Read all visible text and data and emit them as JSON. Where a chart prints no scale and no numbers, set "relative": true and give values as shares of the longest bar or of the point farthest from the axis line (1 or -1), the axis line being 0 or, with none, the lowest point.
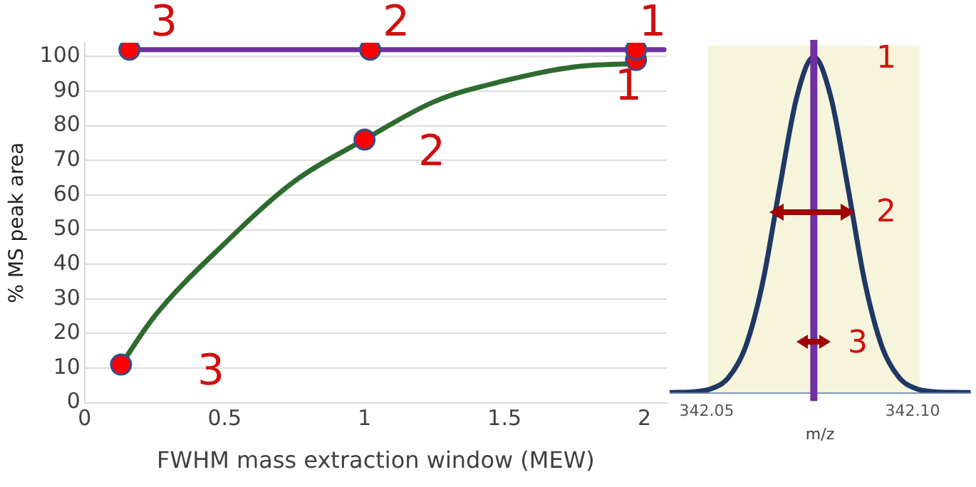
{
  "chart_data": [
    {
      "type": "line",
      "xlabel": "FWHM mass extraction window (MEW)",
      "ylabel": "% MS peak area",
      "xlim": [
        0,
        2.08
      ],
      "xticks": [
        0,
        0.5,
        1,
        1.5,
        2
      ],
      "ylim": [
        0,
        104
      ],
      "yticks": [
        0,
        10,
        20,
        30,
        40,
        50,
        60,
        70,
        80,
        90,
        100
      ],
      "grid": "y",
      "series": [
        {
          "type": "line",
          "color": "#2e6b2e",
          "marker": "none",
          "x": [
            0.13,
            0.25,
            0.5,
            0.75,
            1,
            1.25,
            1.5,
            1.75,
            1.97
          ],
          "values": [
            11,
            25,
            46,
            64,
            76,
            87,
            93,
            97,
            98
          ]
        },
        {
          "type": "line",
          "color": "#7030a0",
          "marker": "none",
          "x": [
            0.16,
            1.02,
            1.97,
            2.07
          ],
          "values": [
            102,
            102,
            102,
            102
          ]
        },
        {
          "type": "scatter",
          "color": "#ff0000",
          "marker": "circle",
          "x": [
            0.13,
            1,
            1.97,
            0.16,
            1.02,
            1.97
          ],
          "values": [
            11,
            76,
            99,
            102,
            102,
            102
          ]
        }
      ],
      "annotations": [
        "3",
        "2",
        "1",
        "1",
        "2",
        "3"
      ]
    },
    {
      "type": "line",
      "relative": true,
      "xlabel": "m/z",
      "tick_labels": "x",
      "xlim": [
        342.041,
        342.114
      ],
      "xticks": [
        342.05,
        {
          "value": 342.1,
          "label": "342.10"
        }
      ],
      "series": [
        {
          "type": "line",
          "color": "#1f3864",
          "marker": "none",
          "x": [
            342.041,
            342.0428,
            342.04695,
            342.0511,
            342.05525,
            342.0594,
            342.06355,
            342.0677,
            342.07185,
            342.076,
            342.08015,
            342.0843,
            342.08845,
            342.0926,
            342.09675,
            342.1009,
            342.10505,
            342.1092,
            342.114
          ],
          "values": [
            0,
            0.0003,
            0.0022,
            0.011,
            0.044,
            0.135,
            0.325,
            0.61,
            0.88,
            1,
            0.88,
            0.61,
            0.325,
            0.135,
            0.044,
            0.011,
            0.0022,
            0.0003,
            0
          ]
        }
      ],
      "bands": [
        {
          "axis": "x",
          "from": 342.0503,
          "to": 342.1017,
          "color": "#f6f5dc"
        }
      ],
      "ref_lines": [
        {
          "axis": "x",
          "value": 342.076,
          "color": "#7030a0"
        }
      ],
      "annotations": [
        "1",
        "2",
        "3"
      ]
    }
  ]
}
